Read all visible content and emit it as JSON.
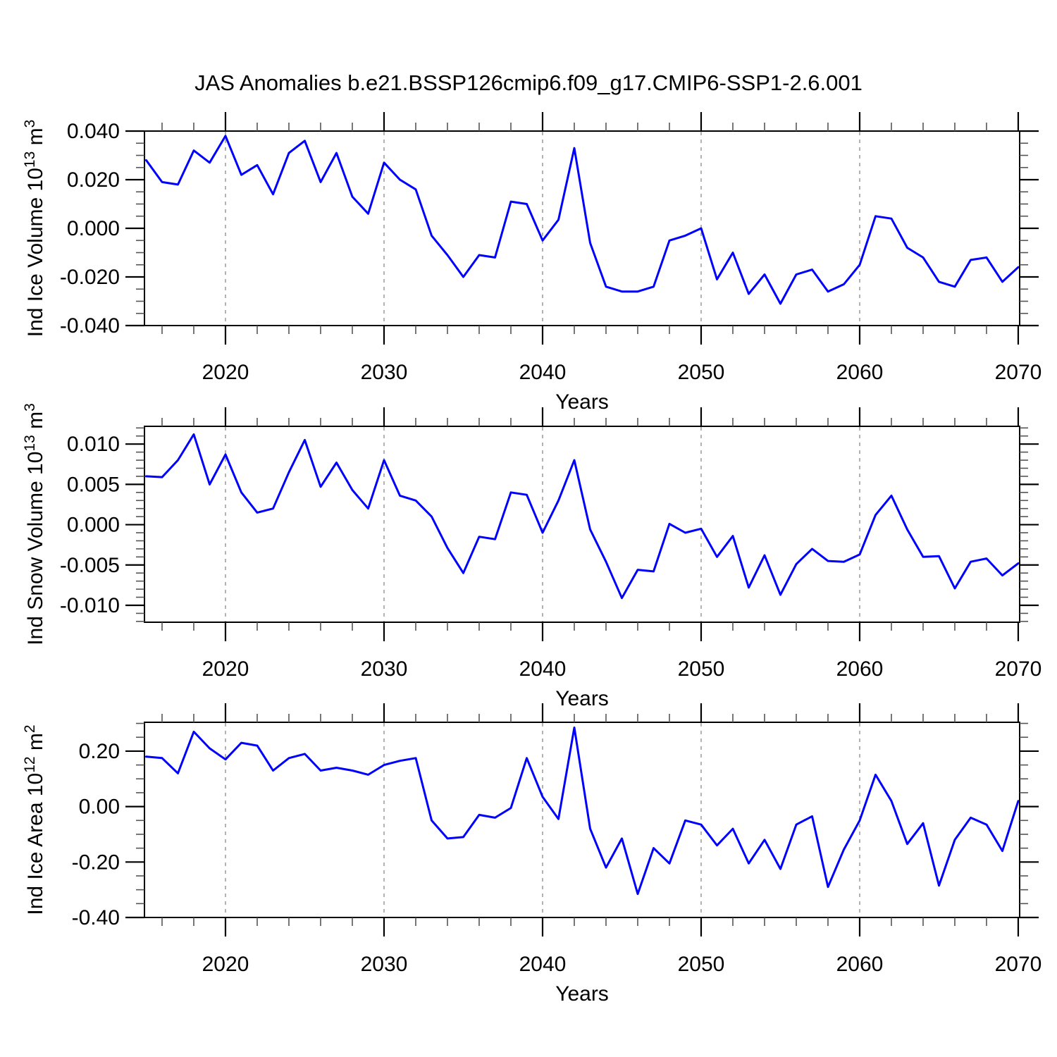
{
  "title": "JAS Anomalies b.e21.BSSP126cmip6.f09_g17.CMIP6-SSP1-2.6.001",
  "colors": {
    "line": "#0000ff",
    "frame": "#000000",
    "minor_tick": "#555555",
    "grid": "#999999"
  },
  "x_axis": {
    "label": "Years",
    "tick_labels": [
      "2020",
      "2030",
      "2040",
      "2050",
      "2060",
      "2070"
    ],
    "ticks": [
      2020,
      2030,
      2040,
      2050,
      2060,
      2070
    ],
    "minor_step": 2,
    "xlim": [
      2014.89,
      2070.09
    ],
    "grid_years": [
      2020,
      2030,
      2040,
      2050,
      2060
    ],
    "grid_style": "dashed"
  },
  "years": [
    2015,
    2016,
    2017,
    2018,
    2019,
    2020,
    2021,
    2022,
    2023,
    2024,
    2025,
    2026,
    2027,
    2028,
    2029,
    2030,
    2031,
    2032,
    2033,
    2034,
    2035,
    2036,
    2037,
    2038,
    2039,
    2040,
    2041,
    2042,
    2043,
    2044,
    2045,
    2046,
    2047,
    2048,
    2049,
    2050,
    2051,
    2052,
    2053,
    2054,
    2055,
    2056,
    2057,
    2058,
    2059,
    2060,
    2061,
    2062,
    2063,
    2064,
    2065,
    2066,
    2067,
    2068,
    2069,
    2070
  ],
  "chart_data": [
    {
      "type": "line",
      "title": "",
      "ylabel": "Ind Ice Volume 10^13 m^3",
      "ylabel_parts": [
        "Ind Ice Volume 10",
        "13",
        " m",
        "3"
      ],
      "xlabel": "Years",
      "ylim": [
        -0.04,
        0.04
      ],
      "yticks": [
        -0.04,
        -0.02,
        0,
        0.02,
        0.04
      ],
      "ytick_labels": [
        "-0.040",
        "-0.020",
        "0.000",
        "0.020",
        "0.040"
      ],
      "yminor_step": 0.005,
      "legend": "none",
      "values": [
        0.028,
        0.019,
        0.018,
        0.032,
        0.027,
        0.038,
        0.022,
        0.026,
        0.014,
        0.031,
        0.036,
        0.019,
        0.031,
        0.013,
        0.006,
        0.027,
        0.02,
        0.016,
        -0.003,
        -0.011,
        -0.02,
        -0.011,
        -0.012,
        0.011,
        0.01,
        -0.005,
        0.0035,
        0.033,
        -0.006,
        -0.024,
        -0.026,
        -0.026,
        -0.024,
        -0.005,
        -0.003,
        0.0,
        -0.021,
        -0.01,
        -0.027,
        -0.019,
        -0.031,
        -0.019,
        -0.017,
        -0.026,
        -0.023,
        -0.015,
        0.005,
        0.004,
        -0.008,
        -0.012,
        -0.022,
        -0.024,
        -0.013,
        -0.012,
        -0.022,
        -0.016
      ]
    },
    {
      "type": "line",
      "title": "",
      "ylabel": "Ind Snow Volume 10^13 m^3",
      "ylabel_parts": [
        "Ind Snow Volume 10",
        "13",
        " m",
        "3"
      ],
      "xlabel": "Years",
      "ylim": [
        -0.0121,
        0.0122
      ],
      "yticks": [
        -0.01,
        -0.005,
        0,
        0.005,
        0.01
      ],
      "ytick_labels": [
        "-0.010",
        "-0.005",
        "0.000",
        "0.005",
        "0.010"
      ],
      "yminor_step": 0.001,
      "legend": "none",
      "values": [
        0.006,
        0.0059,
        0.008,
        0.0112,
        0.005,
        0.0087,
        0.004,
        0.0015,
        0.002,
        0.0065,
        0.0105,
        0.0047,
        0.0077,
        0.0043,
        0.002,
        0.008,
        0.0036,
        0.003,
        0.001,
        -0.0029,
        -0.006,
        -0.0015,
        -0.0018,
        0.004,
        0.0037,
        -0.001,
        0.003,
        0.008,
        -0.0006,
        -0.0046,
        -0.0091,
        -0.0056,
        -0.0058,
        0.0001,
        -0.001,
        -0.0005,
        -0.004,
        -0.0014,
        -0.0078,
        -0.0038,
        -0.0087,
        -0.0049,
        -0.003,
        -0.0045,
        -0.0046,
        -0.0037,
        0.0012,
        0.0036,
        -0.0006,
        -0.004,
        -0.0039,
        -0.0079,
        -0.0046,
        -0.0042,
        -0.0063,
        -0.0048
      ]
    },
    {
      "type": "line",
      "title": "",
      "ylabel": "Ind Ice Area 10^12 m^2",
      "ylabel_parts": [
        "Ind Ice Area 10",
        "12",
        " m",
        "2"
      ],
      "xlabel": "Years",
      "ylim": [
        -0.4,
        0.304
      ],
      "yticks": [
        -0.4,
        -0.2,
        0,
        0.2
      ],
      "ytick_labels": [
        "-0.40",
        "-0.20",
        "0.00",
        "0.20"
      ],
      "yminor_step": 0.05,
      "legend": "none",
      "values": [
        0.18,
        0.175,
        0.12,
        0.27,
        0.21,
        0.17,
        0.23,
        0.22,
        0.13,
        0.175,
        0.19,
        0.13,
        0.14,
        0.13,
        0.115,
        0.15,
        0.165,
        0.175,
        -0.05,
        -0.115,
        -0.11,
        -0.03,
        -0.04,
        -0.005,
        0.175,
        0.035,
        -0.045,
        0.285,
        -0.08,
        -0.22,
        -0.115,
        -0.315,
        -0.15,
        -0.205,
        -0.05,
        -0.065,
        -0.14,
        -0.08,
        -0.205,
        -0.12,
        -0.225,
        -0.065,
        -0.035,
        -0.29,
        -0.155,
        -0.05,
        0.115,
        0.02,
        -0.135,
        -0.06,
        -0.285,
        -0.12,
        -0.04,
        -0.065,
        -0.16,
        0.02
      ]
    }
  ]
}
